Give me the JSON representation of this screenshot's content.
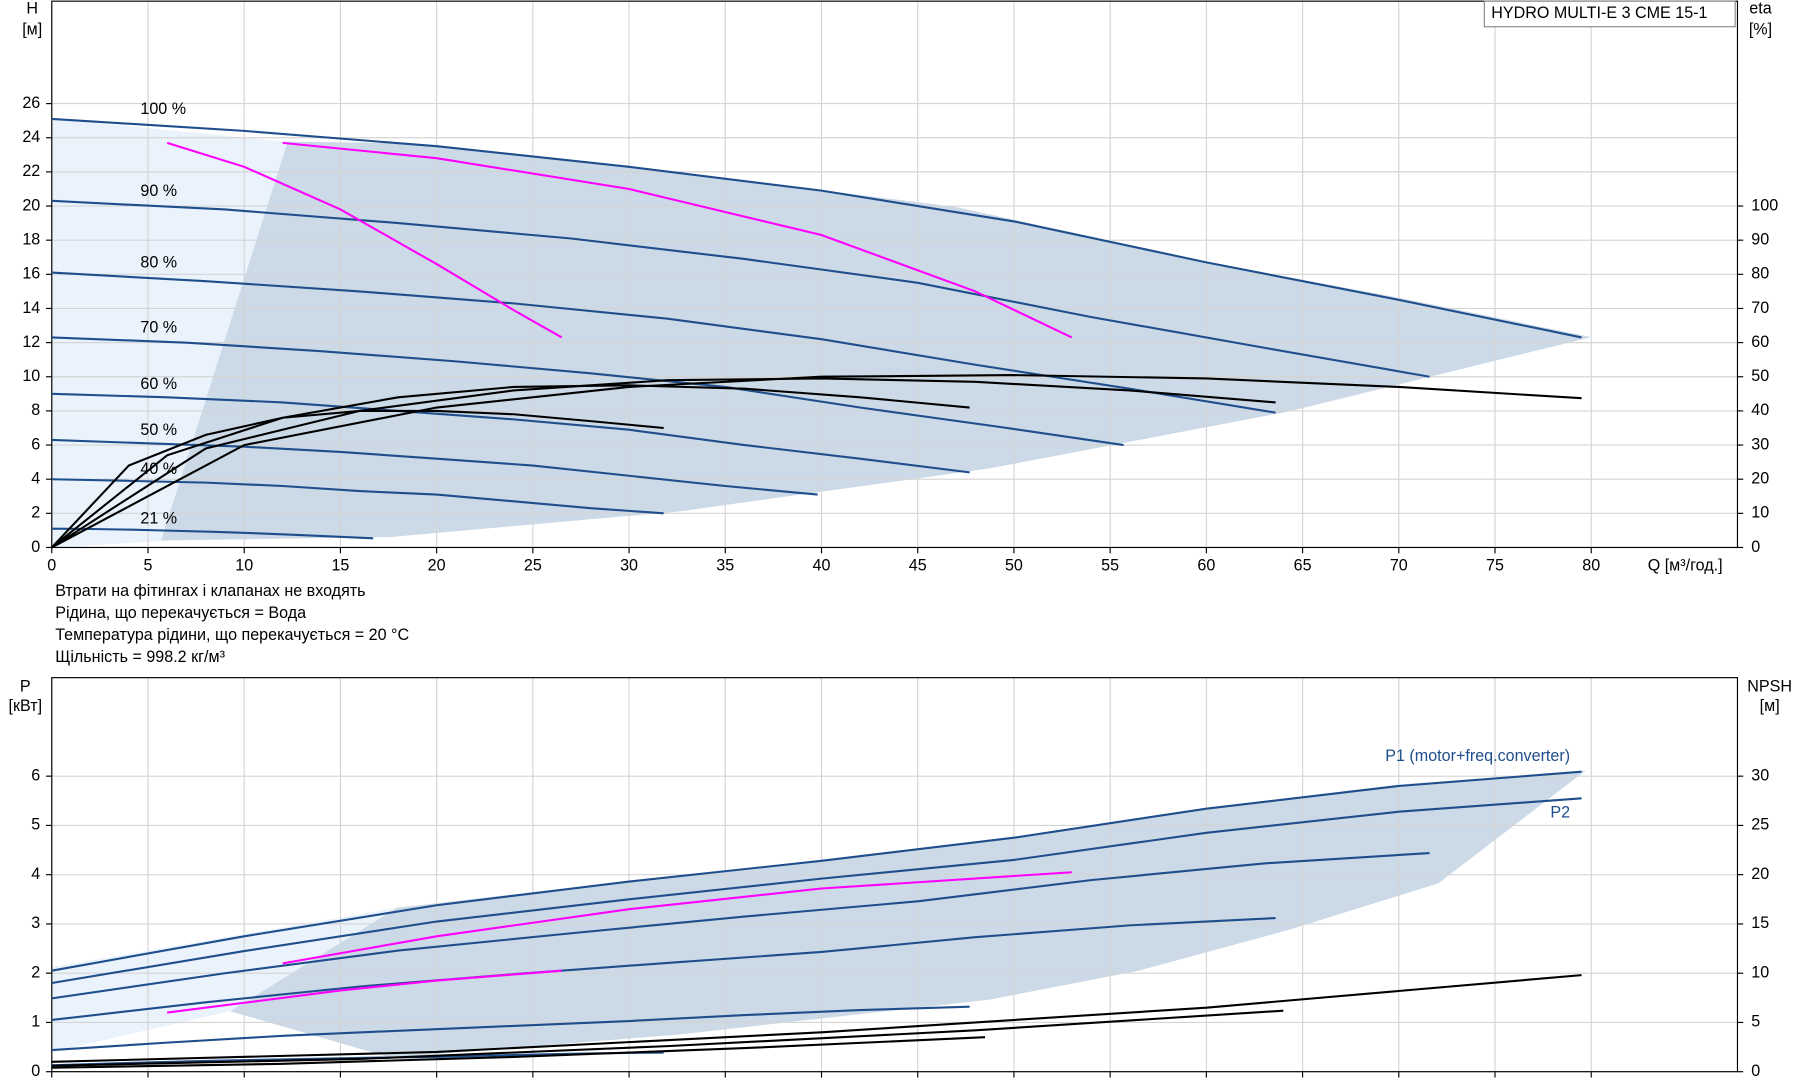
{
  "chart_data": [
    {
      "type": "line",
      "title": "HYDRO MULTI-E 3 CME 15-1",
      "y_label": "H",
      "y_unit": "[м]",
      "y2_label": "eta",
      "y2_unit": "[%]",
      "x_label": "Q [м³/год.]",
      "xlim": [
        0,
        87.6
      ],
      "ylim": [
        0,
        32
      ],
      "y2lim": [
        0,
        160
      ],
      "xticks": [
        0,
        5,
        10,
        15,
        20,
        25,
        30,
        35,
        40,
        45,
        50,
        55,
        60,
        65,
        70,
        75,
        80
      ],
      "yticks": [
        0,
        2,
        4,
        6,
        8,
        10,
        12,
        14,
        16,
        18,
        20,
        22,
        24,
        26
      ],
      "y2ticks": [
        0,
        10,
        20,
        30,
        40,
        50,
        60,
        70,
        80,
        90,
        100
      ],
      "grid": true,
      "show_xtick_labels": true,
      "series": [
        {
          "label": "100 %",
          "color": "#1f4e8c",
          "x": [
            0,
            10,
            20,
            30,
            40,
            50,
            60,
            70,
            79.5
          ],
          "values": [
            25.1,
            24.4,
            23.5,
            22.3,
            20.9,
            19.1,
            16.7,
            14.5,
            12.3
          ]
        },
        {
          "label": "90 %",
          "color": "#1f4e8c",
          "x": [
            0,
            9,
            18,
            27,
            36,
            45,
            54,
            63,
            71.6
          ],
          "values": [
            20.3,
            19.8,
            19.0,
            18.1,
            16.9,
            15.5,
            13.5,
            11.7,
            10.0
          ]
        },
        {
          "label": "80 %",
          "color": "#1f4e8c",
          "x": [
            0,
            8,
            16,
            24,
            32,
            40,
            48,
            56,
            63.6
          ],
          "values": [
            16.1,
            15.6,
            15.0,
            14.3,
            13.4,
            12.2,
            10.7,
            9.3,
            7.9
          ]
        },
        {
          "label": "70 %",
          "color": "#1f4e8c",
          "x": [
            0,
            7,
            14,
            21,
            28,
            35,
            42,
            49,
            55.7
          ],
          "values": [
            12.3,
            12.0,
            11.5,
            10.9,
            10.2,
            9.4,
            8.2,
            7.1,
            6.0
          ]
        },
        {
          "label": "60 %",
          "color": "#1f4e8c",
          "x": [
            0,
            6,
            12,
            18,
            24,
            30,
            36,
            42,
            47.7
          ],
          "values": [
            9.0,
            8.8,
            8.5,
            8.0,
            7.5,
            6.9,
            6.0,
            5.2,
            4.4
          ]
        },
        {
          "label": "50 %",
          "color": "#1f4e8c",
          "x": [
            0,
            5,
            10,
            15,
            20,
            25,
            30,
            35,
            39.8
          ],
          "values": [
            6.3,
            6.1,
            5.9,
            5.6,
            5.2,
            4.8,
            4.2,
            3.6,
            3.1
          ]
        },
        {
          "label": "40 %",
          "color": "#1f4e8c",
          "x": [
            0,
            4,
            8,
            12,
            16,
            20,
            24,
            28,
            31.8
          ],
          "values": [
            4.0,
            3.9,
            3.8,
            3.6,
            3.3,
            3.1,
            2.7,
            2.3,
            2.0
          ]
        },
        {
          "label": "21 %",
          "color": "#1f4e8c",
          "x": [
            0,
            2.1,
            4.2,
            6.3,
            8.4,
            10.5,
            12.6,
            14.7,
            16.7
          ],
          "values": [
            1.1,
            1.08,
            1.04,
            0.98,
            0.92,
            0.84,
            0.74,
            0.64,
            0.54
          ]
        },
        {
          "color": "#ff00ff",
          "x": [
            6,
            10,
            15,
            20,
            24,
            26.5
          ],
          "values": [
            23.7,
            22.3,
            19.8,
            16.6,
            13.9,
            12.3
          ]
        },
        {
          "color": "#ff00ff",
          "x": [
            12,
            20,
            30,
            40,
            48,
            53
          ],
          "values": [
            23.7,
            22.8,
            21.0,
            18.3,
            15.0,
            12.3
          ]
        },
        {
          "color": "#000000",
          "axis": "y2",
          "x": [
            0,
            10,
            20,
            30,
            40,
            50,
            60,
            70,
            79.5
          ],
          "values": [
            0,
            30,
            41,
            47,
            50,
            50.5,
            49.5,
            47,
            43.7
          ]
        },
        {
          "color": "#000000",
          "axis": "y2",
          "x": [
            0,
            8,
            16,
            24,
            32,
            40,
            48,
            56,
            63.6
          ],
          "values": [
            0,
            29,
            40,
            46,
            49,
            49.5,
            48.5,
            46,
            42.5
          ]
        },
        {
          "color": "#000000",
          "axis": "y2",
          "x": [
            0,
            6,
            12,
            18,
            24,
            30,
            36,
            42,
            47.7
          ],
          "values": [
            0,
            27,
            38,
            44,
            47,
            47.5,
            46.5,
            44,
            41
          ]
        },
        {
          "color": "#000000",
          "axis": "y2",
          "x": [
            0,
            4,
            8,
            12,
            16,
            20,
            24,
            28,
            31.8
          ],
          "values": [
            0,
            24,
            33,
            38,
            40,
            40,
            39,
            37,
            35
          ]
        }
      ]
    },
    {
      "type": "line",
      "y_label": "P",
      "y_unit": "[кВт]",
      "y2_label": "NPSH",
      "y2_unit": "[м]",
      "xlim": [
        0,
        87.6
      ],
      "ylim": [
        0,
        8
      ],
      "y2lim": [
        0,
        40
      ],
      "xticks": [
        0,
        5,
        10,
        15,
        20,
        25,
        30,
        35,
        40,
        45,
        50,
        55,
        60,
        65,
        70,
        75,
        80
      ],
      "yticks": [
        0,
        1,
        2,
        3,
        4,
        5,
        6
      ],
      "y2ticks": [
        0,
        5,
        10,
        15,
        20,
        25,
        30
      ],
      "grid": true,
      "show_xtick_labels": false,
      "series": [
        {
          "label": "P1 (motor+freq.converter)",
          "color": "#1f4e8c",
          "x": [
            0,
            10,
            20,
            30,
            40,
            50,
            60,
            70,
            79.5
          ],
          "values": [
            2.05,
            2.75,
            3.38,
            3.86,
            4.28,
            4.75,
            5.34,
            5.8,
            6.09
          ]
        },
        {
          "label": "P2",
          "color": "#1f4e8c",
          "x": [
            0,
            10,
            20,
            30,
            40,
            50,
            60,
            70,
            79.5
          ],
          "values": [
            1.8,
            2.45,
            3.05,
            3.5,
            3.92,
            4.3,
            4.85,
            5.28,
            5.55
          ]
        },
        {
          "color": "#1f4e8c",
          "x": [
            0,
            9,
            18,
            27,
            36,
            45,
            54,
            63,
            71.6
          ],
          "values": [
            1.49,
            2.0,
            2.46,
            2.81,
            3.15,
            3.46,
            3.89,
            4.23,
            4.44
          ]
        },
        {
          "color": "#1f4e8c",
          "x": [
            0,
            8,
            16,
            24,
            32,
            40,
            48,
            56,
            63.6
          ],
          "values": [
            1.05,
            1.41,
            1.73,
            1.98,
            2.21,
            2.43,
            2.73,
            2.97,
            3.12
          ]
        },
        {
          "color": "#1f4e8c",
          "x": [
            0,
            6,
            12,
            18,
            24,
            30,
            36,
            42,
            47.7
          ],
          "values": [
            0.44,
            0.59,
            0.73,
            0.83,
            0.93,
            1.03,
            1.15,
            1.25,
            1.32
          ]
        },
        {
          "color": "#1f4e8c",
          "x": [
            0,
            4,
            8,
            12,
            16,
            20,
            24,
            28,
            31.8
          ],
          "values": [
            0.13,
            0.18,
            0.22,
            0.25,
            0.28,
            0.3,
            0.34,
            0.37,
            0.39
          ]
        },
        {
          "color": "#ff00ff",
          "x": [
            12,
            20,
            30,
            40,
            53
          ],
          "values": [
            2.2,
            2.75,
            3.3,
            3.72,
            4.05
          ]
        },
        {
          "color": "#ff00ff",
          "x": [
            6,
            10,
            15,
            20,
            26.5
          ],
          "values": [
            1.2,
            1.4,
            1.65,
            1.85,
            2.05
          ]
        },
        {
          "color": "#000000",
          "axis": "y2",
          "x": [
            0,
            20,
            40,
            60,
            79.5
          ],
          "values": [
            1,
            2,
            4,
            6.5,
            9.8
          ]
        },
        {
          "color": "#000000",
          "axis": "y2",
          "x": [
            0,
            16,
            32,
            48,
            64
          ],
          "values": [
            0.6,
            1.3,
            2.6,
            4.2,
            6.2
          ]
        },
        {
          "color": "#000000",
          "axis": "y2",
          "x": [
            0,
            12,
            24,
            36,
            48.5
          ],
          "values": [
            0.4,
            0.8,
            1.5,
            2.4,
            3.5
          ]
        }
      ]
    }
  ],
  "notes": [
    "Втрати на фітингах і клапанах не входять",
    "Рідина, що перекачується = Вода",
    "Температура рідини, що перекачується = 20 °C",
    "Щільність = 998.2 кг/м³"
  ]
}
